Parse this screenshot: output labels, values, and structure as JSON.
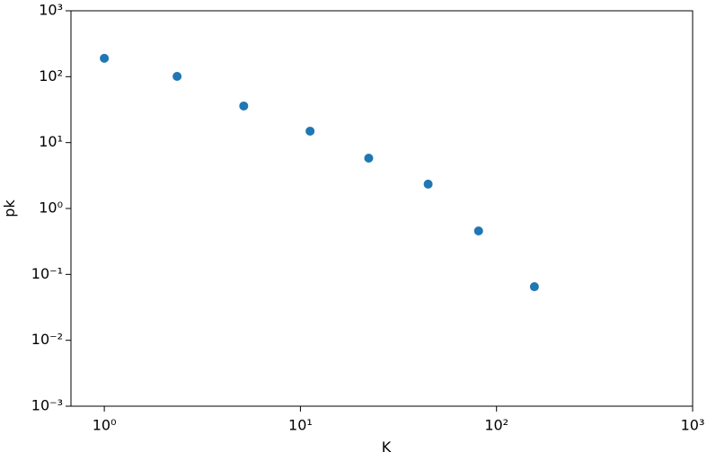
{
  "chart_data": {
    "type": "scatter",
    "xlabel": "K",
    "ylabel": "pk",
    "x": [
      1,
      2.35,
      5.14,
      11.2,
      22.3,
      44.8,
      81,
      156
    ],
    "y": [
      190,
      101,
      35.9,
      14.9,
      5.8,
      2.34,
      0.456,
      0.065
    ],
    "color": "#1f77b4",
    "xscale": "log",
    "yscale": "log",
    "xlim": [
      0.676,
      1000
    ],
    "ylim": [
      0.001,
      1000
    ],
    "xticks": [
      {
        "value": 1,
        "label": "10⁰"
      },
      {
        "value": 10,
        "label": "10¹"
      },
      {
        "value": 100,
        "label": "10²"
      },
      {
        "value": 1000,
        "label": "10³"
      }
    ],
    "yticks": [
      {
        "value": 0.001,
        "label": "10⁻³"
      },
      {
        "value": 0.01,
        "label": "10⁻²"
      },
      {
        "value": 0.1,
        "label": "10⁻¹"
      },
      {
        "value": 1,
        "label": "10⁰"
      },
      {
        "value": 10,
        "label": "10¹"
      },
      {
        "value": 100,
        "label": "10²"
      },
      {
        "value": 1000,
        "label": "10³"
      }
    ]
  }
}
